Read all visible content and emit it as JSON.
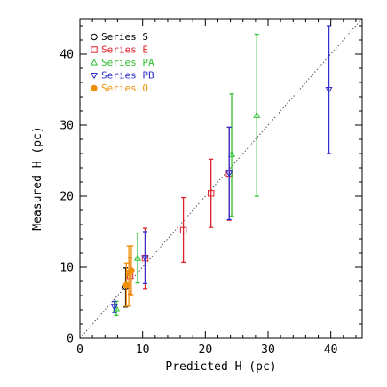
{
  "chart_data": {
    "type": "scatter",
    "title": "",
    "xlabel": "Predicted H (pc)",
    "ylabel": "Measured H (pc)",
    "xlim": [
      0,
      45
    ],
    "ylim": [
      0,
      45
    ],
    "x_ticks": [
      0,
      10,
      20,
      30,
      40
    ],
    "y_ticks": [
      0,
      10,
      20,
      30,
      40
    ],
    "x_tick_labels": [
      "0",
      "10",
      "20",
      "30",
      "40"
    ],
    "y_tick_labels": [
      "0",
      "10",
      "20",
      "30",
      "40"
    ],
    "grid": false,
    "legend_position": "top-left",
    "reference_line": {
      "style": "dotted",
      "description": "y = x"
    },
    "series": [
      {
        "name": "Series S",
        "color": "#000000",
        "marker": "circle-open",
        "points": [
          {
            "x": 7.3,
            "y": 7.2,
            "ylo": 4.4,
            "yhi": 9.9
          }
        ]
      },
      {
        "name": "Series E",
        "color": "#e0212b",
        "marker": "square-open",
        "points": [
          {
            "x": 8.0,
            "y": 8.8,
            "ylo": 6.2,
            "yhi": 11.4
          },
          {
            "x": 10.4,
            "y": 11.3,
            "ylo": 6.9,
            "yhi": 15.5
          },
          {
            "x": 16.5,
            "y": 15.2,
            "ylo": 10.7,
            "yhi": 19.8
          },
          {
            "x": 20.9,
            "y": 20.4,
            "ylo": 15.6,
            "yhi": 25.2
          },
          {
            "x": 23.8,
            "y": 23.2,
            "ylo": 16.6,
            "yhi": 29.7
          }
        ]
      },
      {
        "name": "Series PA",
        "color": "#30c030",
        "marker": "triangle-up-open",
        "points": [
          {
            "x": 5.8,
            "y": 4.2,
            "ylo": 3.2,
            "yhi": 5.2
          },
          {
            "x": 9.2,
            "y": 11.3,
            "ylo": 7.8,
            "yhi": 14.8
          },
          {
            "x": 24.2,
            "y": 25.9,
            "ylo": 17.2,
            "yhi": 34.4
          },
          {
            "x": 28.2,
            "y": 31.4,
            "ylo": 20.0,
            "yhi": 42.8
          }
        ]
      },
      {
        "name": "Series PB",
        "color": "#3030d0",
        "marker": "triangle-down-open",
        "points": [
          {
            "x": 5.5,
            "y": 4.4,
            "ylo": 3.6,
            "yhi": 5.2
          },
          {
            "x": 10.4,
            "y": 11.3,
            "ylo": 7.7,
            "yhi": 15.0
          },
          {
            "x": 23.8,
            "y": 23.2,
            "ylo": 16.7,
            "yhi": 29.7
          },
          {
            "x": 39.7,
            "y": 35.0,
            "ylo": 26.0,
            "yhi": 44.0
          }
        ]
      },
      {
        "name": "Series O",
        "color": "#f0900a",
        "marker": "circle-filled",
        "points": [
          {
            "x": 7.4,
            "y": 7.5,
            "ylo": 4.5,
            "yhi": 10.6
          },
          {
            "x": 7.8,
            "y": 9.2,
            "ylo": 4.5,
            "yhi": 13.0
          },
          {
            "x": 8.2,
            "y": 9.5,
            "ylo": 6.1,
            "yhi": 13.0
          }
        ]
      }
    ]
  }
}
